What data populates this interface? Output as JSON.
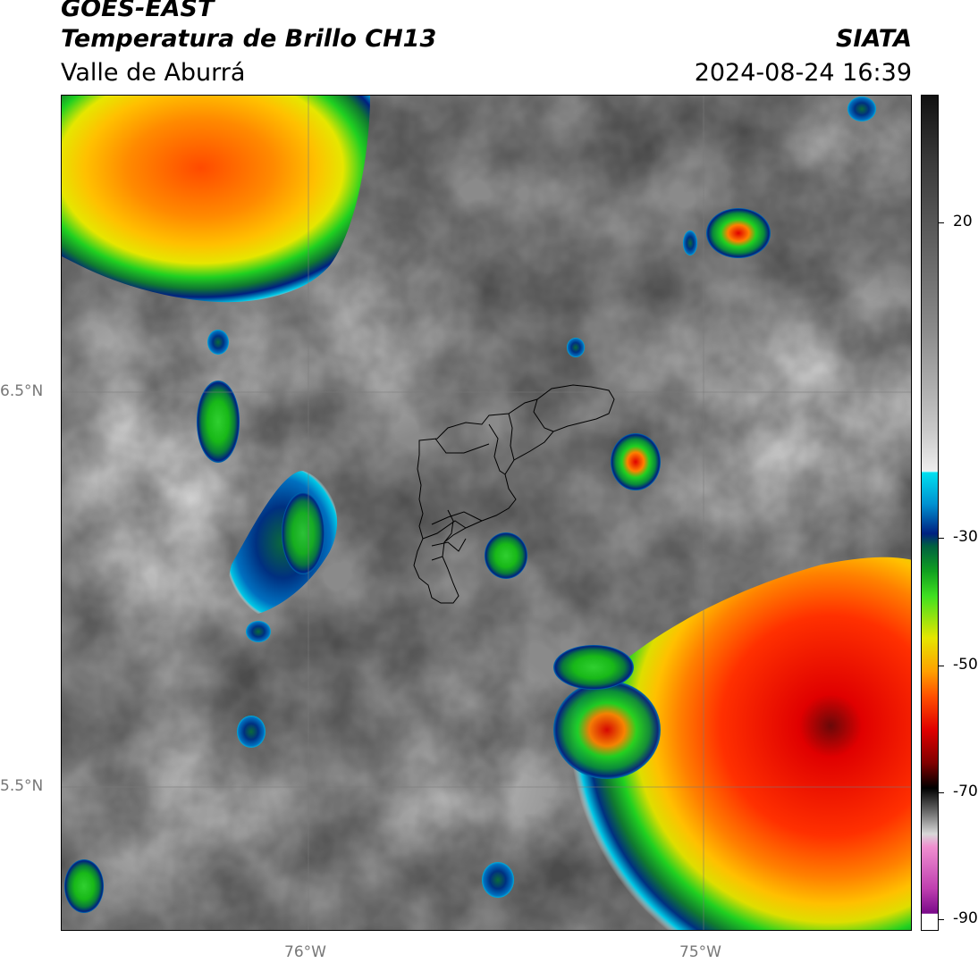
{
  "header": {
    "line1": "GOES-EAST",
    "line2": "Temperatura de Brillo CH13",
    "line3": "Valle de Aburrá",
    "org": "SIATA",
    "datetime": "2024-08-24 16:39"
  },
  "axes": {
    "lat_labels": [
      "6.5°N",
      "5.5°N"
    ],
    "lon_labels": [
      "76°W",
      "75°W"
    ]
  },
  "colorbar": {
    "ticks": [
      "20",
      "-30",
      "-50",
      "-70",
      "-90"
    ],
    "tick_values": [
      20,
      -30,
      -50,
      -70,
      -90
    ],
    "range": [
      -92,
      30
    ]
  },
  "colors": {
    "gray_warm": "#6e6e6e",
    "gray_light": "#dcdcdc",
    "cold_cyan": "#00c8e6",
    "cold_navy": "#002080",
    "cold_green": "#18c818",
    "cold_yellow": "#e6e600",
    "cold_orange": "#ff8000",
    "cold_red": "#e80000",
    "cold_darkred": "#5a0a0a"
  }
}
